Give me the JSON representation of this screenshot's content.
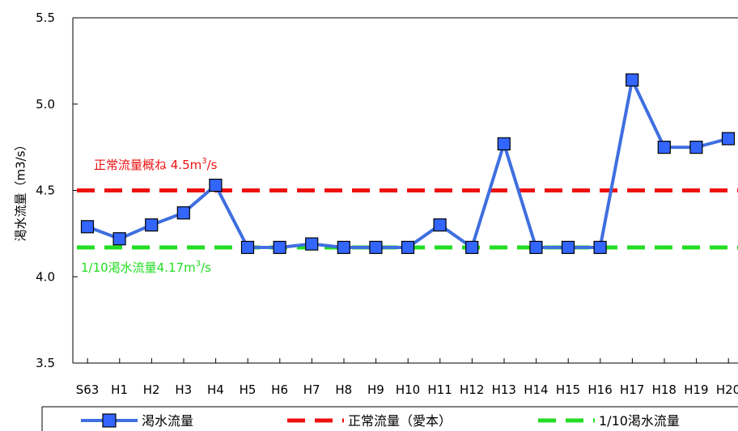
{
  "chart_data": {
    "type": "line",
    "categories": [
      "S63",
      "H1",
      "H2",
      "H3",
      "H4",
      "H5",
      "H6",
      "H7",
      "H8",
      "H9",
      "H10",
      "H11",
      "H12",
      "H13",
      "H14",
      "H15",
      "H16",
      "H17",
      "H18",
      "H19",
      "H20"
    ],
    "series": [
      {
        "name": "渇水流量",
        "values": [
          4.29,
          4.22,
          4.3,
          4.37,
          4.53,
          4.17,
          4.17,
          4.19,
          4.17,
          4.17,
          4.17,
          4.3,
          4.17,
          4.77,
          4.17,
          4.17,
          4.17,
          5.14,
          4.75,
          4.75,
          4.8
        ],
        "color": "#3f6fe0",
        "marker": "square",
        "marker_color": "#3366ff"
      }
    ],
    "reference_lines": [
      {
        "name": "正常流量（愛本）",
        "value": 4.5,
        "color": "#ee1111",
        "style": "dashed",
        "label_main": "正常流量概ね 4.5m",
        "label_sup": "3",
        "label_tail": "/s"
      },
      {
        "name": "1/10渇水流量",
        "value": 4.17,
        "color": "#22dd22",
        "style": "dashed",
        "label_main": "1/10渇水流量4.17m",
        "label_sup": "3",
        "label_tail": "/s"
      }
    ],
    "ylabel": "渇水流量（m3/s）",
    "ylim": [
      3.5,
      5.5
    ],
    "yticks": [
      "3.5",
      "4.0",
      "4.5",
      "5.0",
      "5.5"
    ],
    "grid": false,
    "legend_position": "bottom"
  }
}
